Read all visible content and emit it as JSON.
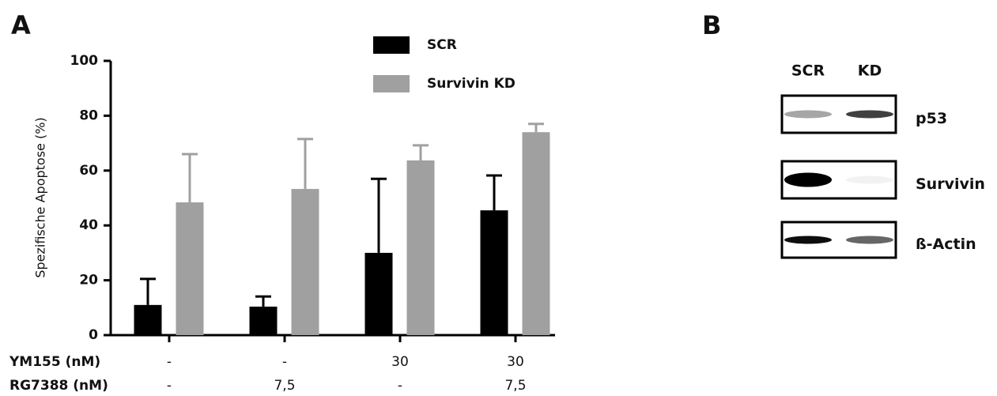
{
  "chart_data": {
    "type": "bar",
    "panel_label": "A",
    "y_label": "Spezifische Apoptose (%)",
    "categories": [
      null,
      null,
      null,
      null
    ],
    "conditions": [
      {
        "name": "YM155 (nM)",
        "labels": [
          "-",
          "-",
          "30",
          "30"
        ]
      },
      {
        "name": "RG7388 (nM)",
        "labels": [
          "-",
          "7,5",
          "-",
          "7,5"
        ]
      }
    ],
    "series": [
      {
        "name": "SCR",
        "color": "#000000",
        "values": [
          11,
          10.4,
          30,
          45.5
        ],
        "errors": [
          9.5,
          3.7,
          27,
          12.7
        ]
      },
      {
        "name": "Survivin KD",
        "color": "#a0a0a0",
        "values": [
          48.4,
          53.3,
          63.7,
          74
        ],
        "errors": [
          17.6,
          18.2,
          5.5,
          3
        ]
      }
    ],
    "ylim": [
      0,
      100
    ],
    "yticks": [
      0,
      20,
      40,
      60,
      80,
      100
    ],
    "grid": false,
    "legend": "top"
  },
  "blot": {
    "panel_label": "B",
    "columns": [
      "SCR",
      "KD"
    ],
    "rows": [
      "p53",
      "Survivin",
      "ß-Actin"
    ]
  }
}
